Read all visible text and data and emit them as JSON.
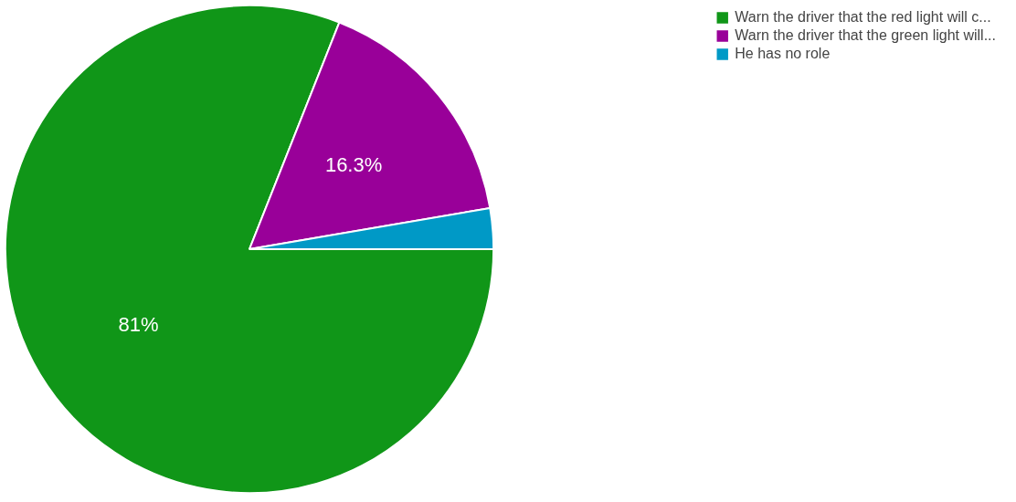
{
  "chart_data": {
    "type": "pie",
    "categories": [
      "Warn the driver that the red light will c...",
      "Warn the driver that the green light will...",
      "He has no role"
    ],
    "values": [
      81,
      16.3,
      2.7
    ],
    "colors": [
      "#109618",
      "#990099",
      "#0099c6"
    ],
    "value_labels": [
      "81%",
      "16.3%",
      null
    ],
    "legend": "top right"
  }
}
